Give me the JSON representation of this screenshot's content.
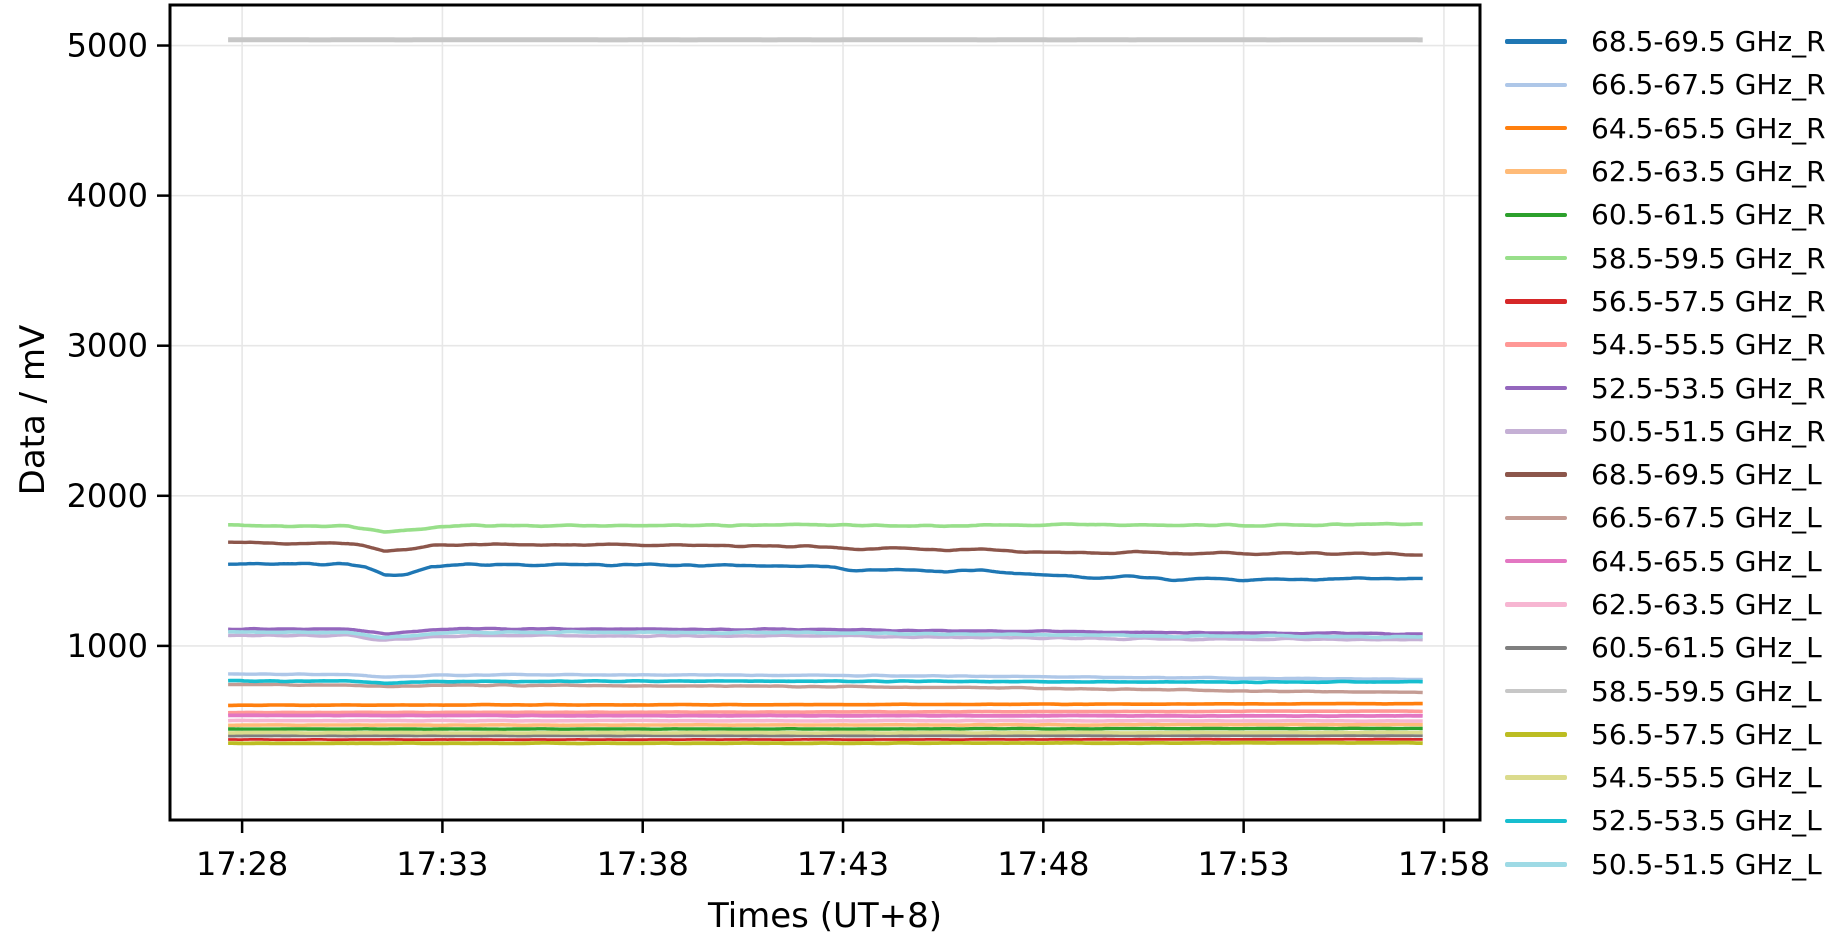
{
  "page": {
    "background": "#ffffff"
  },
  "chart_data": {
    "type": "line",
    "title": "",
    "xlabel": "Times (UT+8)",
    "ylabel": "Data / mV",
    "grid": true,
    "grid_color": "#e7e7e7",
    "frame_color": "#000000",
    "legend_position": "right-outside",
    "ylim": [
      -160,
      5270
    ],
    "y_ticks": [
      1000,
      2000,
      3000,
      4000,
      5000
    ],
    "xlim_minutes": [
      1046.2,
      1078.9
    ],
    "x_ticks": [
      {
        "label": "17:28",
        "minute": 1048
      },
      {
        "label": "17:33",
        "minute": 1053
      },
      {
        "label": "17:38",
        "minute": 1058
      },
      {
        "label": "17:43",
        "minute": 1063
      },
      {
        "label": "17:48",
        "minute": 1068
      },
      {
        "label": "17:53",
        "minute": 1073
      },
      {
        "label": "17:58",
        "minute": 1078
      }
    ],
    "data_minutes": [
      1047.65,
      1077.47
    ],
    "series": [
      {
        "name": "68.5-69.5 GHz_R",
        "color": "#1f77b4",
        "width": 3.4,
        "noise": 5,
        "points": [
          [
            0,
            1548
          ],
          [
            0.1,
            1545
          ],
          [
            0.115,
            1520
          ],
          [
            0.131,
            1468
          ],
          [
            0.15,
            1480
          ],
          [
            0.17,
            1530
          ],
          [
            0.2,
            1542
          ],
          [
            0.3,
            1540
          ],
          [
            0.4,
            1538
          ],
          [
            0.45,
            1535
          ],
          [
            0.5,
            1528
          ],
          [
            0.53,
            1500
          ],
          [
            0.56,
            1510
          ],
          [
            0.6,
            1495
          ],
          [
            0.63,
            1505
          ],
          [
            0.66,
            1480
          ],
          [
            0.7,
            1470
          ],
          [
            0.73,
            1455
          ],
          [
            0.76,
            1465
          ],
          [
            0.79,
            1440
          ],
          [
            0.82,
            1450
          ],
          [
            0.85,
            1435
          ],
          [
            0.88,
            1445
          ],
          [
            0.91,
            1440
          ],
          [
            0.94,
            1450
          ],
          [
            1,
            1452
          ]
        ]
      },
      {
        "name": "66.5-67.5 GHz_R",
        "color": "#aec7e8",
        "width": 3.4,
        "noise": 3,
        "points": [
          [
            0,
            812
          ],
          [
            0.1,
            810
          ],
          [
            0.131,
            792
          ],
          [
            0.17,
            806
          ],
          [
            0.3,
            808
          ],
          [
            0.5,
            804
          ],
          [
            0.65,
            796
          ],
          [
            0.8,
            788
          ],
          [
            0.9,
            782
          ],
          [
            1,
            778
          ]
        ]
      },
      {
        "name": "64.5-65.5 GHz_R",
        "color": "#ff7f0e",
        "width": 3.6,
        "noise": 1.5,
        "points": [
          [
            0,
            605
          ],
          [
            0.3,
            607
          ],
          [
            0.6,
            610
          ],
          [
            1,
            616
          ]
        ]
      },
      {
        "name": "62.5-63.5 GHz_R",
        "color": "#ffbb78",
        "width": 3.6,
        "noise": 1.5,
        "points": [
          [
            0,
            472
          ],
          [
            0.5,
            473
          ],
          [
            1,
            476
          ]
        ]
      },
      {
        "name": "60.5-61.5 GHz_R",
        "color": "#2ca02c",
        "width": 3.4,
        "noise": 1.5,
        "points": [
          [
            0,
            446
          ],
          [
            0.5,
            447
          ],
          [
            1,
            450
          ]
        ]
      },
      {
        "name": "58.5-59.5 GHz_R",
        "color": "#98df8a",
        "width": 3.6,
        "noise": 4,
        "points": [
          [
            0,
            1800
          ],
          [
            0.1,
            1798
          ],
          [
            0.131,
            1760
          ],
          [
            0.16,
            1780
          ],
          [
            0.19,
            1800
          ],
          [
            0.35,
            1802
          ],
          [
            0.5,
            1806
          ],
          [
            0.6,
            1800
          ],
          [
            0.7,
            1808
          ],
          [
            0.8,
            1804
          ],
          [
            0.9,
            1806
          ],
          [
            1,
            1815
          ]
        ]
      },
      {
        "name": "56.5-57.5 GHz_R",
        "color": "#d62728",
        "width": 2.8,
        "noise": 1,
        "points": [
          [
            0,
            376
          ],
          [
            0.5,
            376
          ],
          [
            1,
            378
          ]
        ]
      },
      {
        "name": "54.5-55.5 GHz_R",
        "color": "#ff9896",
        "width": 3.6,
        "noise": 1.5,
        "points": [
          [
            0,
            556
          ],
          [
            0.3,
            558
          ],
          [
            0.6,
            561
          ],
          [
            1,
            566
          ]
        ]
      },
      {
        "name": "52.5-53.5 GHz_R",
        "color": "#9467bd",
        "width": 3.4,
        "noise": 4,
        "points": [
          [
            0,
            1113
          ],
          [
            0.1,
            1112
          ],
          [
            0.131,
            1082
          ],
          [
            0.17,
            1105
          ],
          [
            0.22,
            1115
          ],
          [
            0.35,
            1112
          ],
          [
            0.5,
            1110
          ],
          [
            0.6,
            1102
          ],
          [
            0.7,
            1095
          ],
          [
            0.8,
            1088
          ],
          [
            0.9,
            1085
          ],
          [
            1,
            1082
          ]
        ]
      },
      {
        "name": "50.5-51.5 GHz_R",
        "color": "#c5b0d5",
        "width": 3.4,
        "noise": 4,
        "points": [
          [
            0,
            1070
          ],
          [
            0.1,
            1068
          ],
          [
            0.131,
            1038
          ],
          [
            0.17,
            1060
          ],
          [
            0.22,
            1070
          ],
          [
            0.35,
            1068
          ],
          [
            0.5,
            1066
          ],
          [
            0.6,
            1058
          ],
          [
            0.7,
            1052
          ],
          [
            0.8,
            1046
          ],
          [
            0.9,
            1044
          ],
          [
            1,
            1042
          ]
        ]
      },
      {
        "name": "68.5-69.5 GHz_L",
        "color": "#8c564b",
        "width": 3.4,
        "noise": 5,
        "points": [
          [
            0,
            1688
          ],
          [
            0.05,
            1685
          ],
          [
            0.1,
            1682
          ],
          [
            0.115,
            1660
          ],
          [
            0.131,
            1630
          ],
          [
            0.15,
            1645
          ],
          [
            0.17,
            1668
          ],
          [
            0.22,
            1678
          ],
          [
            0.28,
            1672
          ],
          [
            0.33,
            1676
          ],
          [
            0.4,
            1668
          ],
          [
            0.45,
            1665
          ],
          [
            0.5,
            1660
          ],
          [
            0.53,
            1640
          ],
          [
            0.56,
            1650
          ],
          [
            0.6,
            1638
          ],
          [
            0.63,
            1648
          ],
          [
            0.66,
            1630
          ],
          [
            0.7,
            1625
          ],
          [
            0.73,
            1615
          ],
          [
            0.76,
            1628
          ],
          [
            0.8,
            1610
          ],
          [
            0.83,
            1622
          ],
          [
            0.86,
            1608
          ],
          [
            0.89,
            1625
          ],
          [
            0.92,
            1612
          ],
          [
            0.95,
            1620
          ],
          [
            1,
            1608
          ]
        ]
      },
      {
        "name": "66.5-67.5 GHz_L",
        "color": "#c49c94",
        "width": 3.4,
        "noise": 3,
        "points": [
          [
            0,
            742
          ],
          [
            0.1,
            740
          ],
          [
            0.131,
            728
          ],
          [
            0.17,
            737
          ],
          [
            0.3,
            736
          ],
          [
            0.5,
            730
          ],
          [
            0.65,
            720
          ],
          [
            0.8,
            705
          ],
          [
            0.9,
            697
          ],
          [
            1,
            690
          ]
        ]
      },
      {
        "name": "64.5-65.5 GHz_L",
        "color": "#e377c2",
        "width": 3.8,
        "noise": 1.5,
        "points": [
          [
            0,
            537
          ],
          [
            0.5,
            535
          ],
          [
            1,
            533
          ]
        ]
      },
      {
        "name": "62.5-63.5 GHz_L",
        "color": "#f7b6d2",
        "width": 3.6,
        "noise": 1.5,
        "points": [
          [
            0,
            502
          ],
          [
            0.5,
            501
          ],
          [
            1,
            500
          ]
        ]
      },
      {
        "name": "60.5-61.5 GHz_L",
        "color": "#7f7f7f",
        "width": 3.0,
        "noise": 1,
        "points": [
          [
            0,
            401
          ],
          [
            0.5,
            401
          ],
          [
            1,
            402
          ]
        ]
      },
      {
        "name": "58.5-59.5 GHz_L",
        "color": "#c7c7c7",
        "width": 5.0,
        "noise": 0.4,
        "points": [
          [
            0,
            5038
          ],
          [
            1,
            5038
          ]
        ]
      },
      {
        "name": "56.5-57.5 GHz_L",
        "color": "#bcbd22",
        "width": 3.8,
        "noise": 1.5,
        "points": [
          [
            0,
            351
          ],
          [
            0.5,
            352
          ],
          [
            1,
            354
          ]
        ]
      },
      {
        "name": "54.5-55.5 GHz_L",
        "color": "#dbdb8d",
        "width": 3.6,
        "noise": 1.5,
        "points": [
          [
            0,
            421
          ],
          [
            0.5,
            421
          ],
          [
            1,
            423
          ]
        ]
      },
      {
        "name": "52.5-53.5 GHz_L",
        "color": "#17becf",
        "width": 3.6,
        "noise": 3,
        "points": [
          [
            0,
            768
          ],
          [
            0.1,
            766
          ],
          [
            0.131,
            752
          ],
          [
            0.17,
            763
          ],
          [
            0.3,
            766
          ],
          [
            0.5,
            764
          ],
          [
            0.65,
            762
          ],
          [
            0.8,
            760
          ],
          [
            0.9,
            760
          ],
          [
            1,
            762
          ]
        ]
      },
      {
        "name": "50.5-51.5 GHz_L",
        "color": "#9edae5",
        "width": 3.6,
        "noise": 4,
        "points": [
          [
            0,
            1092
          ],
          [
            0.1,
            1090
          ],
          [
            0.131,
            1058
          ],
          [
            0.17,
            1082
          ],
          [
            0.22,
            1092
          ],
          [
            0.35,
            1090
          ],
          [
            0.5,
            1088
          ],
          [
            0.6,
            1080
          ],
          [
            0.7,
            1072
          ],
          [
            0.8,
            1066
          ],
          [
            0.9,
            1064
          ],
          [
            1,
            1062
          ]
        ]
      }
    ]
  }
}
